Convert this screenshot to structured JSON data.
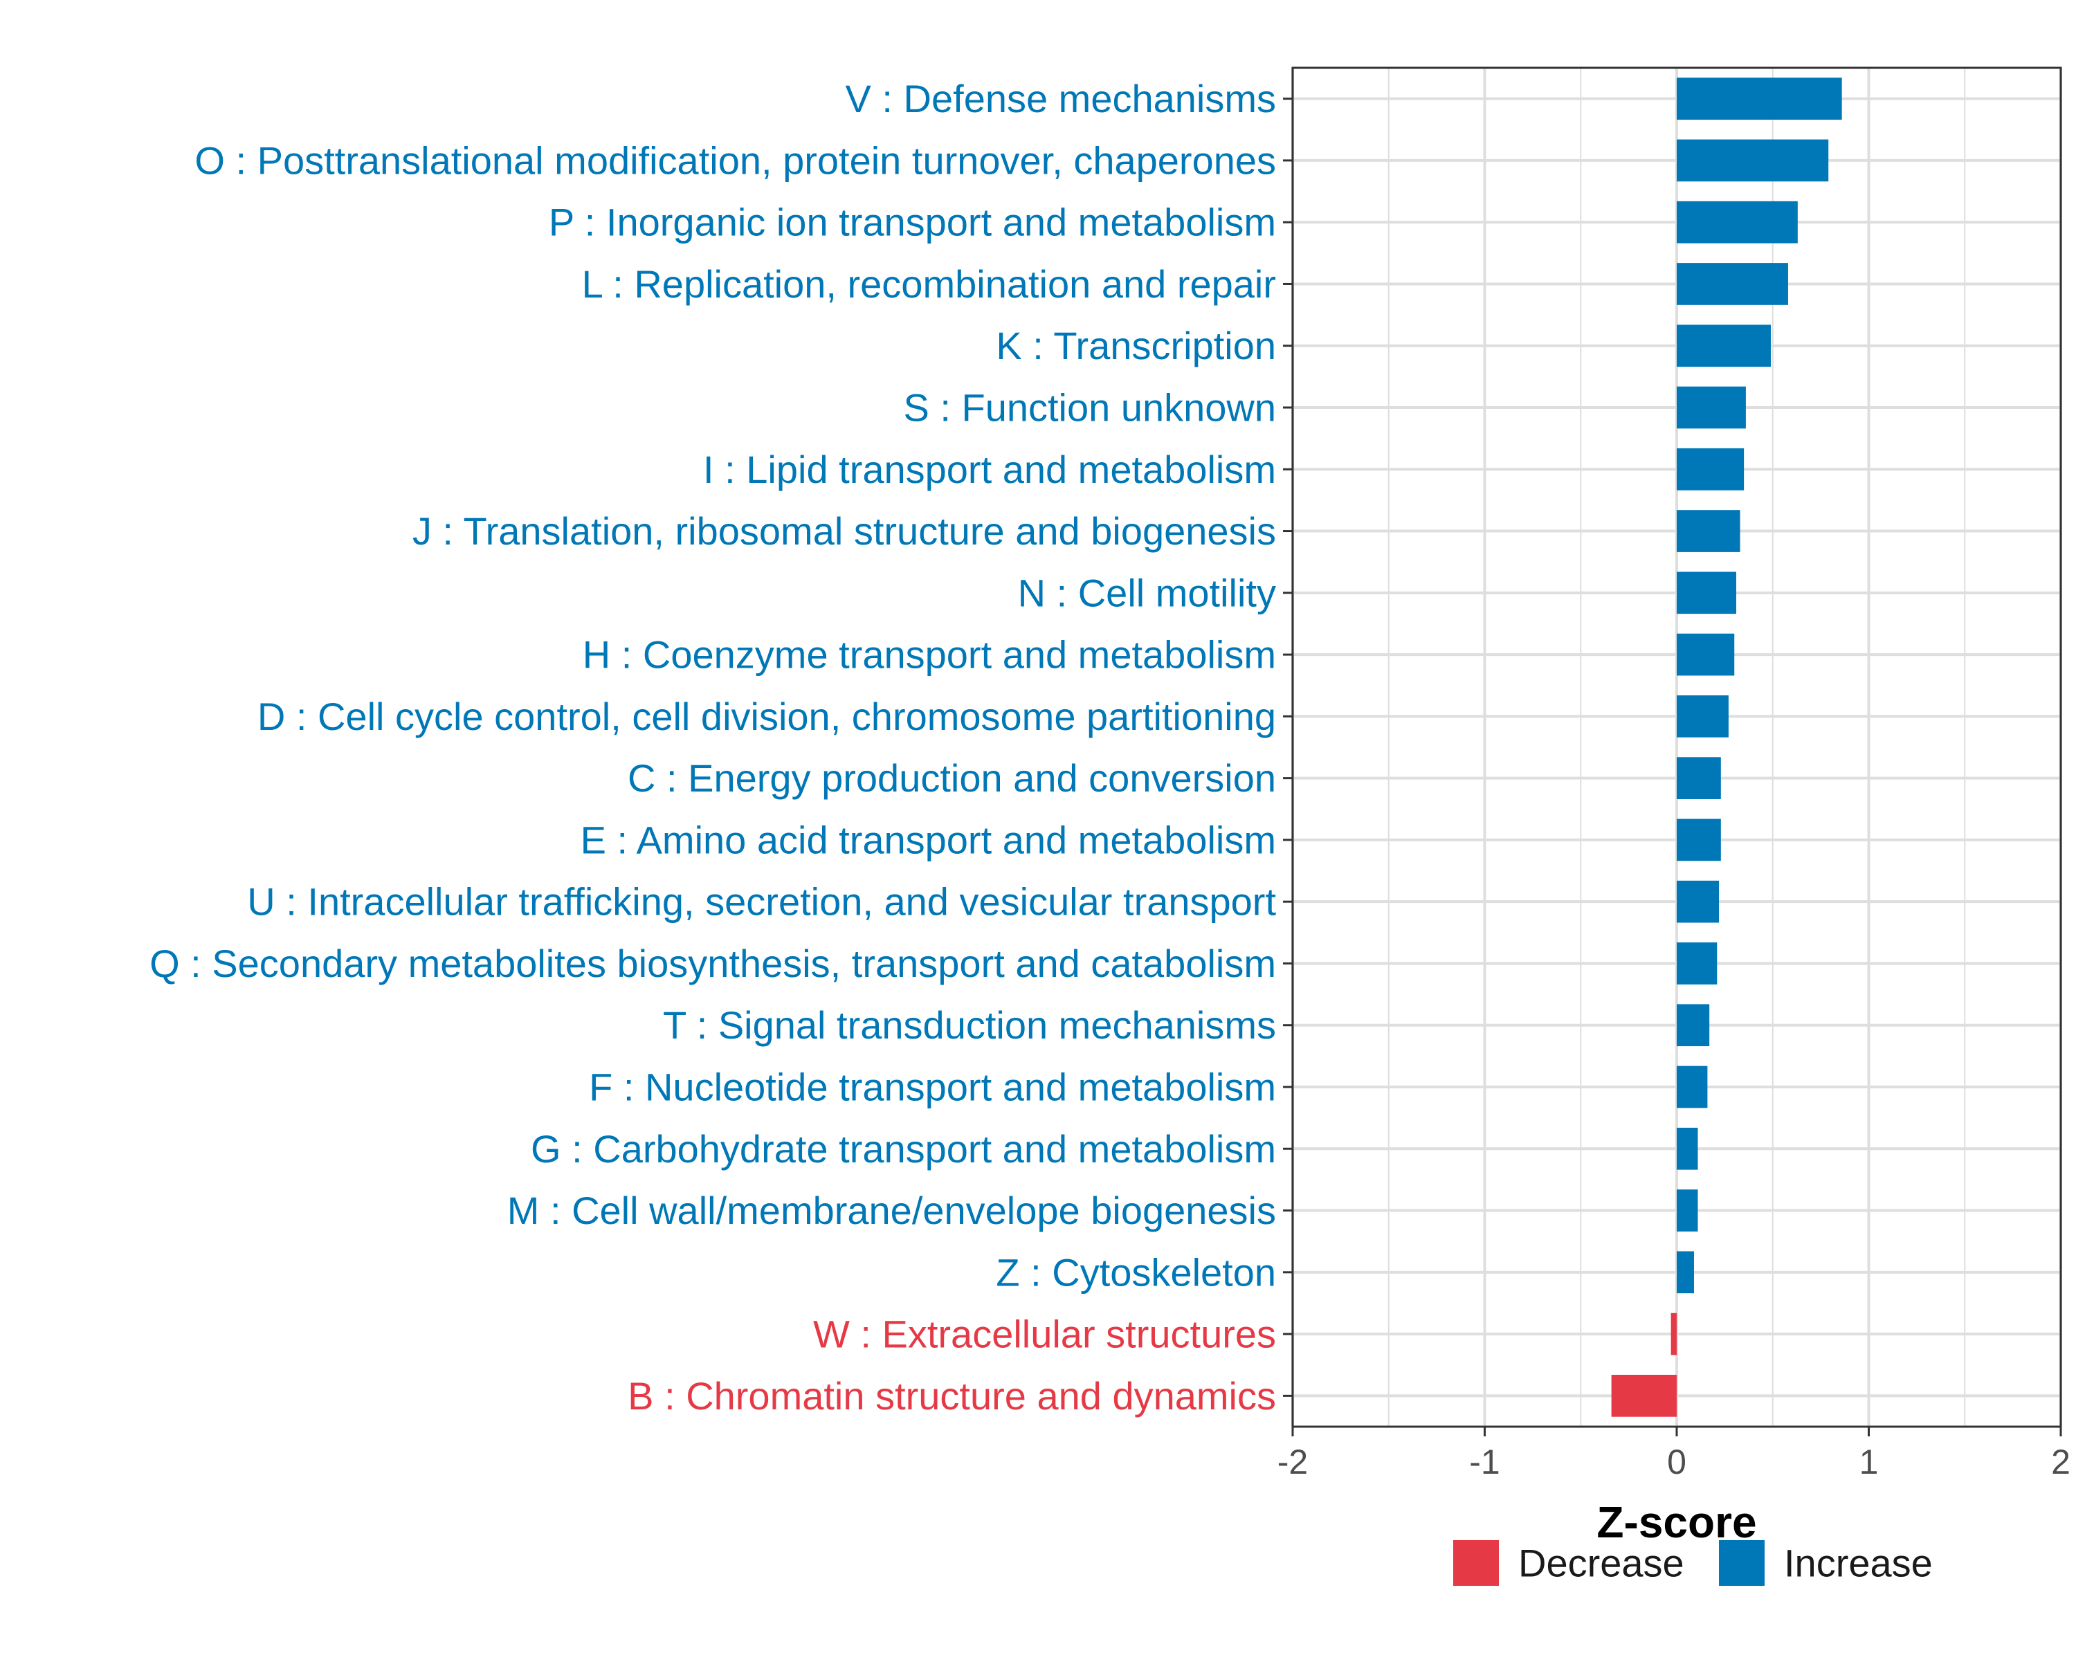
{
  "chart_data": {
    "type": "bar",
    "orientation": "horizontal",
    "xlabel": "Z-score",
    "xlim": [
      -2,
      2
    ],
    "xticks": [
      -2,
      -1,
      0,
      1,
      2
    ],
    "grid": true,
    "legend_position": "bottom",
    "colors": {
      "Decrease": "#e63946",
      "Increase": "#0077b6"
    },
    "legend": [
      {
        "name": "Decrease",
        "color": "#e63946"
      },
      {
        "name": "Increase",
        "color": "#0077b6"
      }
    ],
    "categories": [
      "V : Defense mechanisms",
      "O : Posttranslational modification, protein turnover, chaperones",
      "P : Inorganic ion transport and metabolism",
      "L : Replication, recombination and repair",
      "K : Transcription",
      "S : Function unknown",
      "I : Lipid transport and metabolism",
      "J : Translation, ribosomal structure and biogenesis",
      "N : Cell motility",
      "H : Coenzyme transport and metabolism",
      "D : Cell cycle control, cell division, chromosome partitioning",
      "C : Energy production and conversion",
      "E : Amino acid transport and metabolism",
      "U : Intracellular trafficking, secretion, and vesicular transport",
      "Q : Secondary metabolites biosynthesis, transport and catabolism",
      "T : Signal transduction mechanisms",
      "F : Nucleotide transport and metabolism",
      "G : Carbohydrate transport and metabolism",
      "M : Cell wall/membrane/envelope biogenesis",
      "Z : Cytoskeleton",
      "W : Extracellular structures",
      "B : Chromatin structure and dynamics"
    ],
    "values": [
      0.86,
      0.79,
      0.63,
      0.58,
      0.49,
      0.36,
      0.35,
      0.33,
      0.31,
      0.3,
      0.27,
      0.23,
      0.23,
      0.22,
      0.21,
      0.17,
      0.16,
      0.11,
      0.11,
      0.09,
      -0.03,
      -0.34
    ],
    "groups": [
      "Increase",
      "Increase",
      "Increase",
      "Increase",
      "Increase",
      "Increase",
      "Increase",
      "Increase",
      "Increase",
      "Increase",
      "Increase",
      "Increase",
      "Increase",
      "Increase",
      "Increase",
      "Increase",
      "Increase",
      "Increase",
      "Increase",
      "Increase",
      "Decrease",
      "Decrease"
    ]
  }
}
